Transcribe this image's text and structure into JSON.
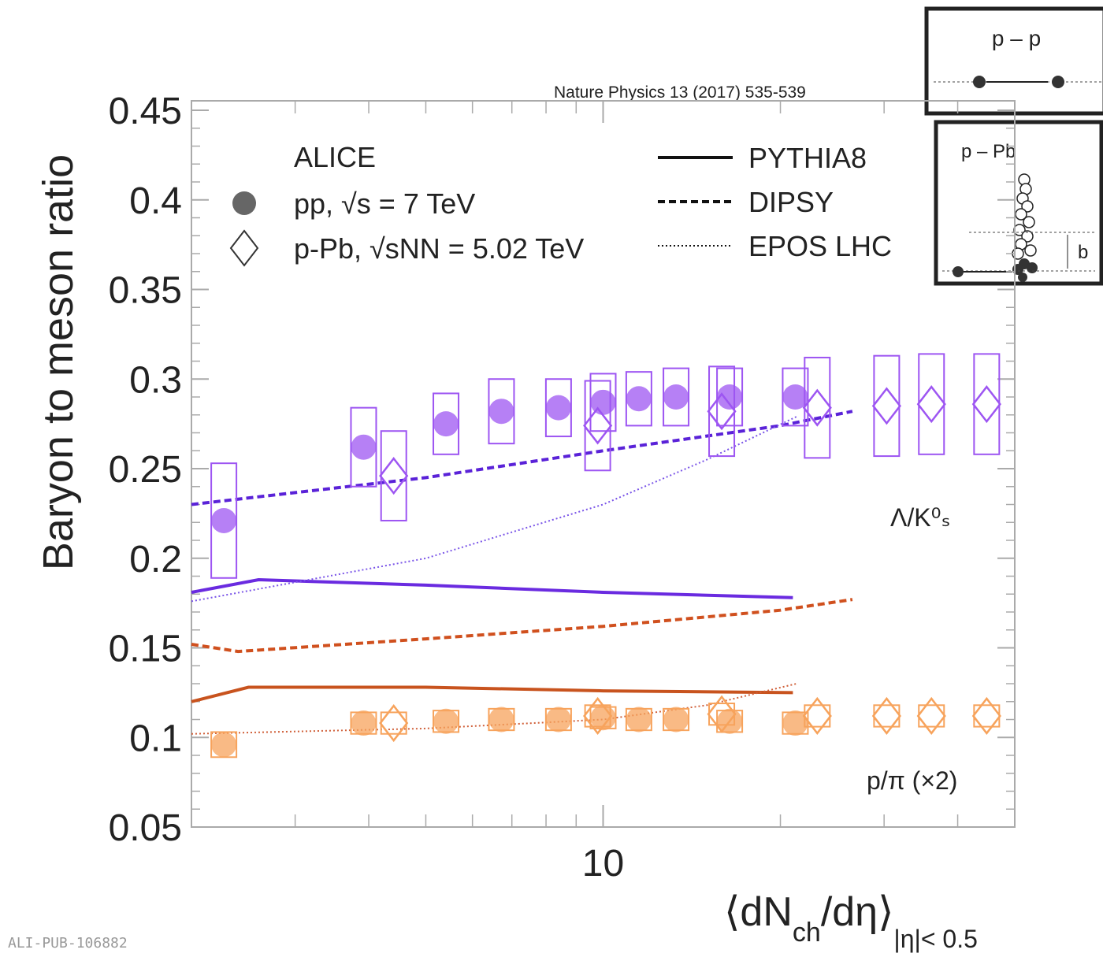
{
  "chart_data": {
    "type": "scatter",
    "source": "Nature Physics 13 (2017) 535-539",
    "footer": "ALI-PUB-106882",
    "y_label": "Baryon to meson ratio",
    "x_label": [
      "⟨dN",
      "ch",
      "/dη⟩",
      "|η|< 0.5"
    ],
    "log_x": true,
    "xlim": [
      2,
      50
    ],
    "xticks": [
      10
    ],
    "xminor": [
      3,
      4,
      5,
      6,
      7,
      8,
      9,
      20,
      30,
      40
    ],
    "ylim": [
      0.05,
      0.45
    ],
    "yticks": [
      0.05,
      0.1,
      0.15,
      0.2,
      0.25,
      0.3,
      0.35,
      0.4,
      0.45
    ],
    "legend_title": "ALICE",
    "systems": [
      {
        "name": "pp, √s = 7 TeV",
        "marker": "circle",
        "series": [
          {
            "color": "#9d55f2",
            "x": [
              2.27,
              3.92,
              5.41,
              6.72,
              8.4,
              10.0,
              11.5,
              13.3,
              16.4,
              21.2
            ],
            "values": [
              0.221,
              0.262,
              0.275,
              0.282,
              0.284,
              0.287,
              0.289,
              0.29,
              0.29,
              0.29
            ],
            "errors": [
              0.032,
              0.022,
              0.017,
              0.018,
              0.016,
              0.016,
              0.015,
              0.016,
              0.016,
              0.016
            ]
          },
          {
            "color": "#f7a35c",
            "x": [
              2.27,
              3.92,
              5.41,
              6.72,
              8.4,
              10.0,
              11.5,
              13.3,
              16.4,
              21.2
            ],
            "values": [
              0.096,
              0.108,
              0.109,
              0.11,
              0.11,
              0.111,
              0.11,
              0.11,
              0.109,
              0.108
            ],
            "errors": [
              0.007,
              0.006,
              0.006,
              0.006,
              0.006,
              0.006,
              0.006,
              0.006,
              0.006,
              0.006
            ]
          }
        ]
      },
      {
        "name": "p-Pb, √sNN = 5.02 TeV",
        "marker": "diamond",
        "series": [
          {
            "color": "#9d55f2",
            "x": [
              4.41,
              9.79,
              15.9,
              23.1,
              30.3,
              36.1,
              44.8
            ],
            "values": [
              0.246,
              0.274,
              0.282,
              0.284,
              0.285,
              0.286,
              0.286
            ],
            "errors": [
              0.025,
              0.025,
              0.025,
              0.028,
              0.028,
              0.028,
              0.028
            ]
          },
          {
            "color": "#f7a35c",
            "x": [
              4.41,
              9.79,
              15.9,
              23.1,
              30.3,
              36.1,
              44.8
            ],
            "values": [
              0.108,
              0.112,
              0.113,
              0.112,
              0.112,
              0.112,
              0.112
            ],
            "errors": [
              0.006,
              0.006,
              0.006,
              0.006,
              0.006,
              0.006,
              0.006
            ]
          }
        ]
      }
    ],
    "models": [
      {
        "name": "PYTHIA8",
        "dash": "solid",
        "series": [
          {
            "color": "#6a2be0",
            "x": [
              2,
              2.6,
              5,
              10,
              21
            ],
            "values": [
              0.181,
              0.188,
              0.185,
              0.181,
              0.178
            ]
          },
          {
            "color": "#c8531e",
            "x": [
              2,
              2.5,
              5,
              10,
              21
            ],
            "values": [
              0.12,
              0.128,
              0.128,
              0.126,
              0.125
            ]
          }
        ]
      },
      {
        "name": "DIPSY",
        "dash": "dashed",
        "series": [
          {
            "color": "#5a22d8",
            "x": [
              2,
              5,
              10,
              20,
              26.5
            ],
            "values": [
              0.23,
              0.245,
              0.26,
              0.274,
              0.282
            ]
          },
          {
            "color": "#d0501e",
            "x": [
              2,
              2.4,
              5,
              10,
              20,
              26.5
            ],
            "values": [
              0.152,
              0.148,
              0.155,
              0.162,
              0.171,
              0.177
            ]
          }
        ]
      },
      {
        "name": "EPOS LHC",
        "dash": "dotted",
        "series": [
          {
            "color": "#7a55e8",
            "x": [
              2,
              5,
              10,
              15,
              21.3
            ],
            "values": [
              0.176,
              0.2,
              0.23,
              0.255,
              0.279
            ]
          },
          {
            "color": "#d0603a",
            "x": [
              2,
              5,
              10,
              15,
              21.3
            ],
            "values": [
              0.102,
              0.105,
              0.11,
              0.118,
              0.13
            ]
          }
        ]
      }
    ],
    "annotations": [
      "Λ/K⁰ₛ",
      "p/π (×2)"
    ],
    "insets": [
      "p – p",
      "p – Pb",
      "b"
    ]
  }
}
